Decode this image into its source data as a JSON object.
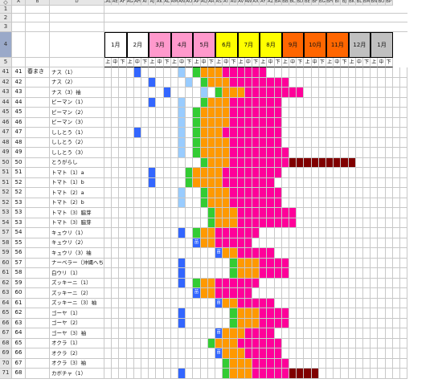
{
  "corner": "◇",
  "columns": [
    "A",
    "B",
    "D",
    "LAD",
    "AE",
    "AF",
    "AG",
    "AH",
    "AI",
    "AJ",
    "AK",
    "AL",
    "AM",
    "AN",
    "AO",
    "AP",
    "AQ",
    "AR",
    "AS",
    "AT",
    "AU",
    "AV",
    "AW",
    "AX",
    "AY",
    "AZ",
    "BA",
    "BB",
    "BC",
    "BD",
    "BE",
    "BF",
    "BG",
    "BH",
    "BI",
    "BJ",
    "BK",
    "BL",
    "BM",
    "BN",
    "BO",
    "BP"
  ],
  "top_row_numbers": [
    "1",
    "2",
    "3",
    "4",
    "5"
  ],
  "months": [
    {
      "label": "1月",
      "color": "#ffffff"
    },
    {
      "label": "2月",
      "color": "#ffffff"
    },
    {
      "label": "3月",
      "color": "#ff99cc"
    },
    {
      "label": "4月",
      "color": "#ff99cc"
    },
    {
      "label": "5月",
      "color": "#ff99cc"
    },
    {
      "label": "6月",
      "color": "#ffff00"
    },
    {
      "label": "7月",
      "color": "#ffff00"
    },
    {
      "label": "8月",
      "color": "#ffff00"
    },
    {
      "label": "9月",
      "color": "#ff6600"
    },
    {
      "label": "10月",
      "color": "#ff6600"
    },
    {
      "label": "11月",
      "color": "#ff6600"
    },
    {
      "label": "12月",
      "color": "#c0c0c0"
    },
    {
      "label": "1月",
      "color": "#c0c0c0"
    }
  ],
  "sub_labels": [
    "上",
    "中",
    "下"
  ],
  "colors": {
    "B": "#3366ff",
    "L": "#99ccff",
    "G": "#33cc33",
    "O": "#ff9900",
    "P": "#ff0099",
    "M": "#800000",
    "D": "#3366ff"
  },
  "sowing_label": "苗",
  "rows": [
    {
      "rownum": "41",
      "a": "41",
      "b": "春まき",
      "d": "ナス（1）",
      "cells": "....B.....L.GOOOPPPPPP"
    },
    {
      "rownum": "42",
      "a": "42",
      "b": "",
      "d": "ナス（2）",
      "cells": "......B....L.GOOOPPPPPPPP"
    },
    {
      "rownum": "43",
      "a": "43",
      "b": "",
      "d": "ナス（3）袖",
      "cells": "........B....L.GOOOPPPPPPPP"
    },
    {
      "rownum": "44",
      "a": "44",
      "b": "",
      "d": "ピーマン（1）",
      "cells": "......B...L..GOOOPPPPPPP"
    },
    {
      "rownum": "45",
      "a": "45",
      "b": "",
      "d": "ピーマン（2）",
      "cells": "..........L.GOOOOPPPPPPP"
    },
    {
      "rownum": "46",
      "a": "46",
      "b": "",
      "d": "ピーマン（3）",
      "cells": "..........L.GOOOOPPPPPPP"
    },
    {
      "rownum": "47",
      "a": "47",
      "b": "",
      "d": "ししとう（1）",
      "cells": "....B.....L.GOOOPPPPPPPP"
    },
    {
      "rownum": "48",
      "a": "48",
      "b": "",
      "d": "ししとう（2）",
      "cells": "..........L.GOOOOPPPPPPP"
    },
    {
      "rownum": "49",
      "a": "49",
      "b": "",
      "d": "ししとう（3）",
      "cells": "..........L.GOOOOPPPPPPPP"
    },
    {
      "rownum": "50",
      "a": "50",
      "b": "",
      "d": "とうがらし",
      "cells": ".............GOOOPPPPPPPPMMMMMMMMM"
    },
    {
      "rownum": "51",
      "a": "51",
      "b": "",
      "d": "トマト（1）a",
      "cells": "......B....GOOOOPPPPPPPP"
    },
    {
      "rownum": "51",
      "a": "52",
      "b": "",
      "d": "トマト（1）b",
      "cells": "......B....GOOOOPPPPPPP"
    },
    {
      "rownum": "52",
      "a": "52",
      "b": "",
      "d": "トマト（2）a",
      "cells": "..........L..GOOOPPPPPPP"
    },
    {
      "rownum": "52",
      "a": "53",
      "b": "",
      "d": "トマト（2）b",
      "cells": "..........L..GOOOPPPPPPP"
    },
    {
      "rownum": "53",
      "a": "53",
      "b": "",
      "d": "トマト（3）脇芽",
      "cells": "..............GOOOPPPPPPPP"
    },
    {
      "rownum": "54",
      "a": "53",
      "b": "",
      "d": "トマト（3）脇芽",
      "cells": "..............GOOOPPPPPPPP"
    },
    {
      "rownum": "57",
      "a": "54",
      "b": "",
      "d": "キュウリ（1）",
      "cells": "..........B.GOOPPPPPP"
    },
    {
      "rownum": "58",
      "a": "55",
      "b": "",
      "d": "キュウリ（2）",
      "cells": "............DOOPPPPP"
    },
    {
      "rownum": "59",
      "a": "56",
      "b": "",
      "d": "キュウリ（3）袖",
      "cells": "...............DOOPPPPP"
    },
    {
      "rownum": "60",
      "a": "57",
      "b": "",
      "d": "ナーベラー（沖縄へちま）（1）",
      "cells": "..........B......GOOOPPPP"
    },
    {
      "rownum": "61",
      "a": "58",
      "b": "",
      "d": "白ウリ（1）",
      "cells": "..........B......GOOOPPPP"
    },
    {
      "rownum": "62",
      "a": "59",
      "b": "",
      "d": "ズッキーニ（1）",
      "cells": "..........B.GOOPPPPPP"
    },
    {
      "rownum": "63",
      "a": "60",
      "b": "",
      "d": "ズッキーニ（2）",
      "cells": "............DOOPPPPP"
    },
    {
      "rownum": "64",
      "a": "61",
      "b": "",
      "d": "ズッキーニ（3）袖",
      "cells": "...............DOOPPPPP"
    },
    {
      "rownum": "65",
      "a": "62",
      "b": "",
      "d": "ゴーヤ（1）",
      "cells": "..........B......GOOOPPPP"
    },
    {
      "rownum": "66",
      "a": "63",
      "b": "",
      "d": "ゴーヤ（2）",
      "cells": "..........B......GOOOPPPP"
    },
    {
      "rownum": "67",
      "a": "64",
      "b": "",
      "d": "ゴーヤ（3）袖",
      "cells": "...............DOOOPPPP"
    },
    {
      "rownum": "68",
      "a": "65",
      "b": "",
      "d": "オクラ（1）",
      "cells": "..............GOOOPPPPPP"
    },
    {
      "rownum": "69",
      "a": "66",
      "b": "",
      "d": "オクラ（2）",
      "cells": "...............DOOOPPPPP"
    },
    {
      "rownum": "70",
      "a": "67",
      "b": "",
      "d": "オクラ（3）袖",
      "cells": "................GOOOPPPPP"
    },
    {
      "rownum": "71",
      "a": "68",
      "b": "",
      "d": "カボチャ（1）",
      "cells": "..........B.....GOOOPPPPPMMMM"
    }
  ]
}
